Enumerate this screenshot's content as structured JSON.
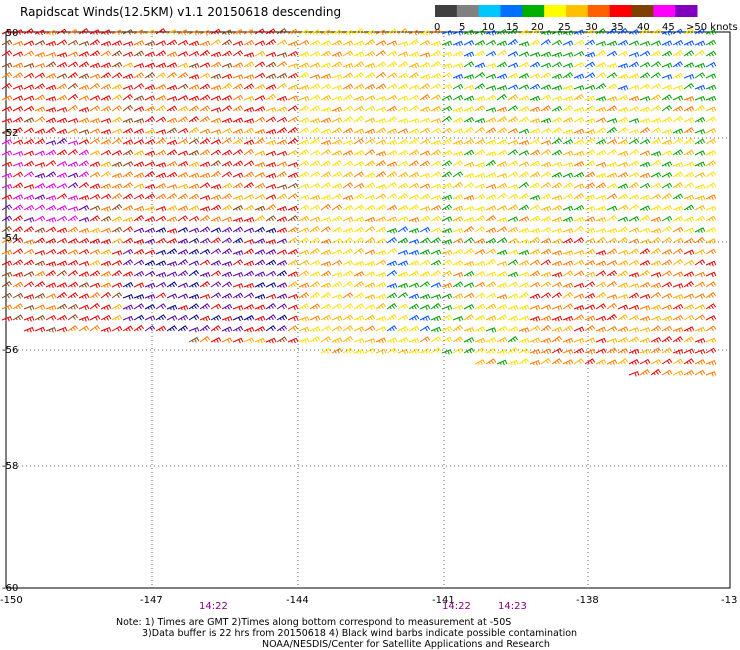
{
  "title": "Rapidscat Winds(12.5KM) v1.1 20150618 descending",
  "legend": {
    "ticks": [
      "0",
      "5",
      "10",
      "15",
      "20",
      "25",
      "30",
      "35",
      "40",
      "45",
      ">50 knots"
    ],
    "colors": [
      "#404040",
      "#808080",
      "#00c8ff",
      "#0070ff",
      "#00b000",
      "#ffff00",
      "#ffc000",
      "#ff6000",
      "#ff0000",
      "#804000",
      "#ff00ff",
      "#8000c0"
    ]
  },
  "lat_labels": [
    "-50",
    "-52",
    "-54",
    "-56",
    "-58",
    "-60"
  ],
  "lon_labels": [
    "-150",
    "-147",
    "-144",
    "-141",
    "-138",
    "-13"
  ],
  "times": [
    "14:22",
    "14:22",
    "14:23"
  ],
  "notes": [
    "Note: 1) Times are GMT 2)Times along bottom correspond to measurement at -50S",
    "3)Data buffer is 22 hrs from 20150618 4) Black wind barbs indicate possible contamination",
    "NOAA/NESDIS/Center for Satellite Applications and Research"
  ]
}
